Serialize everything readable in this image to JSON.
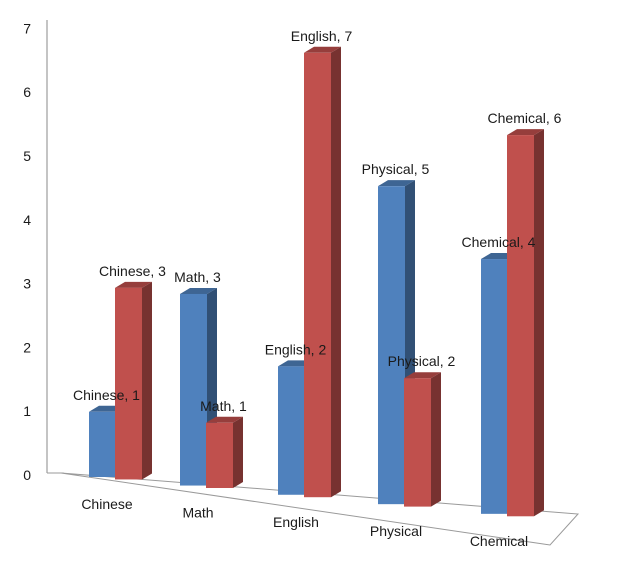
{
  "chart_data": {
    "type": "bar",
    "title": "",
    "xlabel": "",
    "ylabel": "",
    "ylim": [
      0,
      7
    ],
    "y_ticks": [
      "0",
      "1",
      "2",
      "3",
      "4",
      "5",
      "6",
      "7"
    ],
    "grid": false,
    "legend": "none",
    "style": "3d-clustered-column",
    "categories": [
      "Chinese",
      "Math",
      "English",
      "Physical",
      "Chemical"
    ],
    "series": [
      {
        "color": "#4f81bd",
        "values": [
          1,
          3,
          2,
          5,
          4
        ],
        "labels": [
          "Chinese, 1",
          "Math, 3",
          "English, 2",
          "Physical, 5",
          "Chemical, 4"
        ]
      },
      {
        "color": "#c0504d",
        "values": [
          3,
          1,
          7,
          2,
          6
        ],
        "labels": [
          "Chinese, 3",
          "Math, 1",
          "English, 7",
          "Physical, 2",
          "Chemical, 6"
        ]
      }
    ]
  }
}
